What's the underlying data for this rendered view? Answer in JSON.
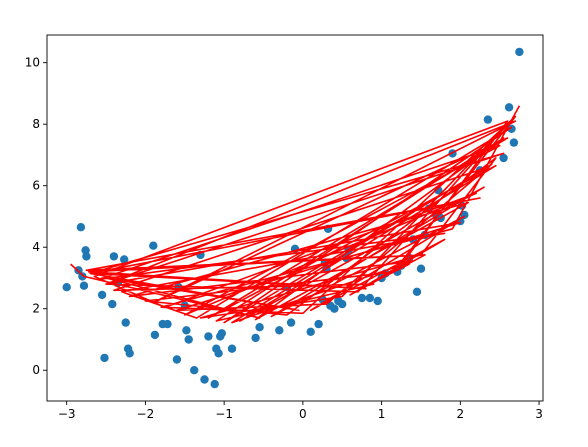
{
  "chart_data": {
    "type": "scatter",
    "title": "",
    "xlabel": "",
    "ylabel": "",
    "xlim": [
      -3.25,
      3.05
    ],
    "ylim": [
      -1.0,
      10.9
    ],
    "xticks": [
      -3,
      -2,
      -1,
      0,
      1,
      2,
      3
    ],
    "xtick_labels": [
      "−3",
      "−2",
      "−1",
      "0",
      "1",
      "2",
      "3"
    ],
    "yticks": [
      0,
      2,
      4,
      6,
      8,
      10
    ],
    "ytick_labels": [
      "0",
      "2",
      "4",
      "6",
      "8",
      "10"
    ],
    "grid": false,
    "legend": "none",
    "colors": {
      "points": "#1f77b4",
      "fit": "#ff0000",
      "axes": "#000000",
      "background": "#ffffff"
    },
    "points": {
      "x": [
        -3.0,
        -2.85,
        -2.82,
        -2.8,
        -2.78,
        -2.76,
        -2.75,
        -2.55,
        -2.52,
        -2.42,
        -2.4,
        -2.35,
        -2.27,
        -2.25,
        -2.22,
        -2.2,
        -1.9,
        -1.88,
        -1.78,
        -1.72,
        -1.6,
        -1.58,
        -1.5,
        -1.48,
        -1.45,
        -1.38,
        -1.3,
        -1.25,
        -1.2,
        -1.12,
        -1.1,
        -1.07,
        -1.05,
        -1.03,
        -0.9,
        -0.6,
        -0.55,
        -0.3,
        -0.2,
        -0.15,
        -0.1,
        0.1,
        0.2,
        0.25,
        0.28,
        0.3,
        0.32,
        0.35,
        0.4,
        0.45,
        0.5,
        0.55,
        0.58,
        0.75,
        0.85,
        0.95,
        1.0,
        1.05,
        1.2,
        1.25,
        1.35,
        1.4,
        1.45,
        1.5,
        1.55,
        1.6,
        1.7,
        1.72,
        1.75,
        1.9,
        2.0,
        2.02,
        2.05,
        2.25,
        2.35,
        2.55,
        2.62,
        2.65,
        2.68,
        2.75
      ],
      "y": [
        2.7,
        3.25,
        4.65,
        3.05,
        2.75,
        3.9,
        3.7,
        2.45,
        0.4,
        2.15,
        3.7,
        2.85,
        3.6,
        1.55,
        0.7,
        0.55,
        4.05,
        1.15,
        1.5,
        1.5,
        0.35,
        2.7,
        2.1,
        1.3,
        1.0,
        0.0,
        3.75,
        -0.3,
        1.1,
        -0.45,
        0.7,
        0.55,
        1.1,
        1.2,
        0.7,
        1.05,
        1.4,
        1.3,
        2.7,
        1.55,
        3.95,
        1.25,
        1.5,
        2.3,
        3.5,
        3.3,
        4.6,
        2.1,
        2.0,
        2.25,
        2.15,
        3.65,
        3.9,
        2.35,
        2.35,
        2.25,
        3.0,
        3.15,
        3.2,
        3.4,
        3.65,
        4.25,
        2.55,
        3.3,
        4.4,
        5.25,
        5.0,
        5.85,
        4.95,
        7.05,
        4.85,
        5.35,
        5.05,
        6.5,
        8.15,
        6.9,
        8.55,
        7.85,
        7.4,
        10.35
      ]
    },
    "fit": {
      "x": [
        -2.95,
        -2.78,
        -0.55,
        -2.5,
        -0.05,
        -2.7,
        0.8,
        -2.72,
        1.55,
        -2.75,
        2.25,
        -2.7,
        2.55,
        -2.45,
        2.7,
        -1.9,
        2.6,
        -1.2,
        2.45,
        -0.8,
        2.3,
        -0.4,
        2.05,
        0.1,
        1.8,
        0.6,
        1.55,
        1.0,
        1.35,
        1.2,
        2.6,
        -2.65,
        -1.75,
        2.2,
        -1.5,
        2.5,
        -2.6,
        1.8,
        -2.3,
        -1.35,
        2.65,
        -1.0,
        2.35,
        -2.4,
        0.9,
        -1.1,
        2.55,
        -0.6,
        2.1,
        -2.2,
        1.4,
        -0.9,
        2.4,
        0.3,
        -1.6,
        2.0,
        -2.5,
        0.7,
        2.6,
        0.5,
        -1.3,
        1.5,
        2.45,
        -0.2,
        -2.0,
        1.15,
        2.7,
        0.0,
        -1.8,
        1.9,
        2.75
      ],
      "y": [
        3.45,
        3.05,
        1.7,
        3.0,
        1.95,
        3.15,
        2.65,
        3.2,
        3.75,
        3.25,
        5.6,
        3.15,
        7.05,
        2.85,
        8.1,
        2.2,
        7.55,
        1.7,
        6.65,
        1.6,
        5.95,
        1.75,
        5.0,
        1.95,
        4.25,
        2.45,
        3.75,
        3.0,
        3.45,
        3.25,
        8.1,
        3.05,
        2.05,
        5.75,
        1.8,
        7.3,
        2.95,
        4.45,
        2.55,
        1.7,
        7.9,
        1.55,
        6.6,
        2.6,
        2.8,
        1.6,
        7.55,
        1.65,
        5.45,
        2.4,
        3.55,
        1.55,
        6.7,
        2.15,
        1.95,
        4.8,
        2.8,
        2.55,
        8.0,
        2.4,
        1.7,
        3.75,
        6.9,
        1.8,
        2.25,
        3.2,
        8.25,
        1.85,
        2.05,
        4.6,
        8.6
      ]
    }
  }
}
